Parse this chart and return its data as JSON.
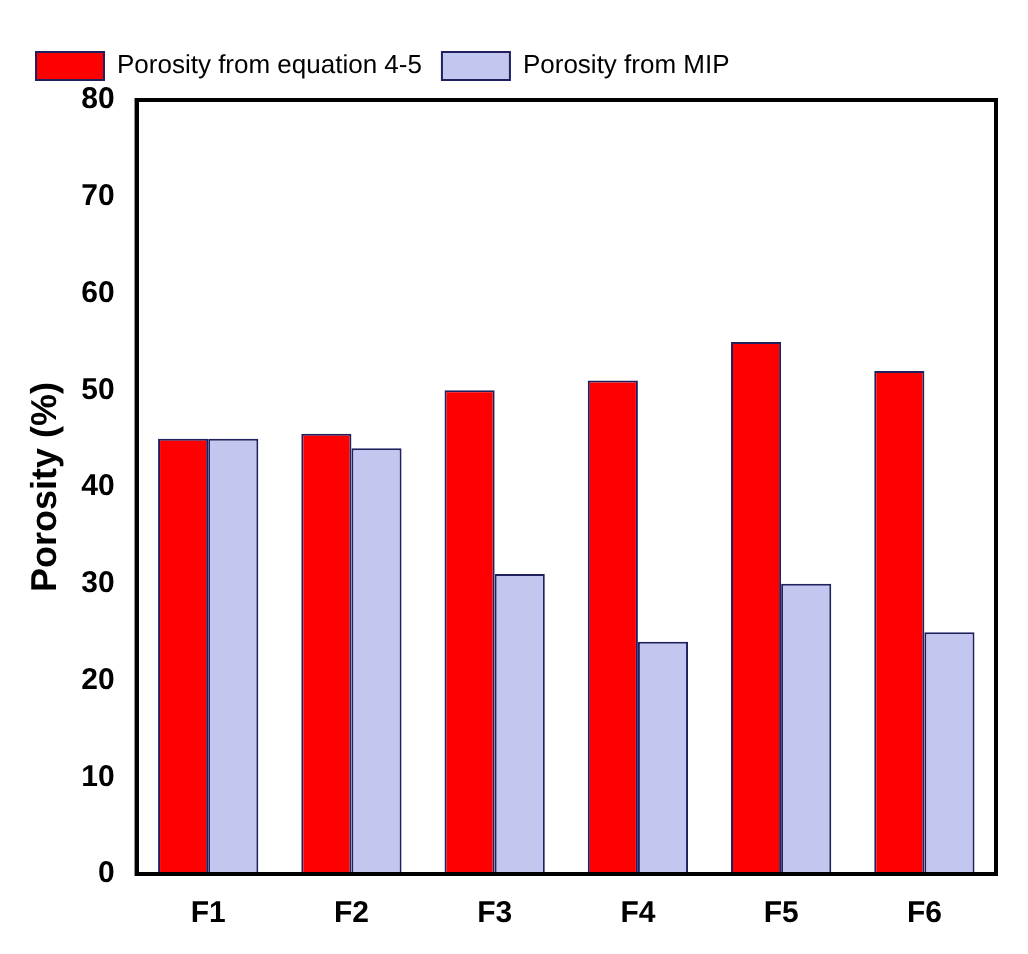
{
  "chart_data": {
    "type": "bar",
    "ylabel": "Porosity (%)",
    "categories": [
      "F1",
      "F2",
      "F3",
      "F4",
      "F5",
      "F6"
    ],
    "series": [
      {
        "name": "Porosity from equation 4-5",
        "color": "#ff0000",
        "values": [
          45,
          45.5,
          50,
          51,
          55,
          52
        ]
      },
      {
        "name": "Porosity from MIP",
        "color": "#c3c6ee",
        "values": [
          45,
          44,
          31,
          24,
          30,
          25
        ]
      }
    ],
    "ylim": [
      0,
      80
    ],
    "yticks": [
      0,
      10,
      20,
      30,
      40,
      50,
      60,
      70,
      80
    ],
    "grid": false,
    "legend": "top left"
  }
}
